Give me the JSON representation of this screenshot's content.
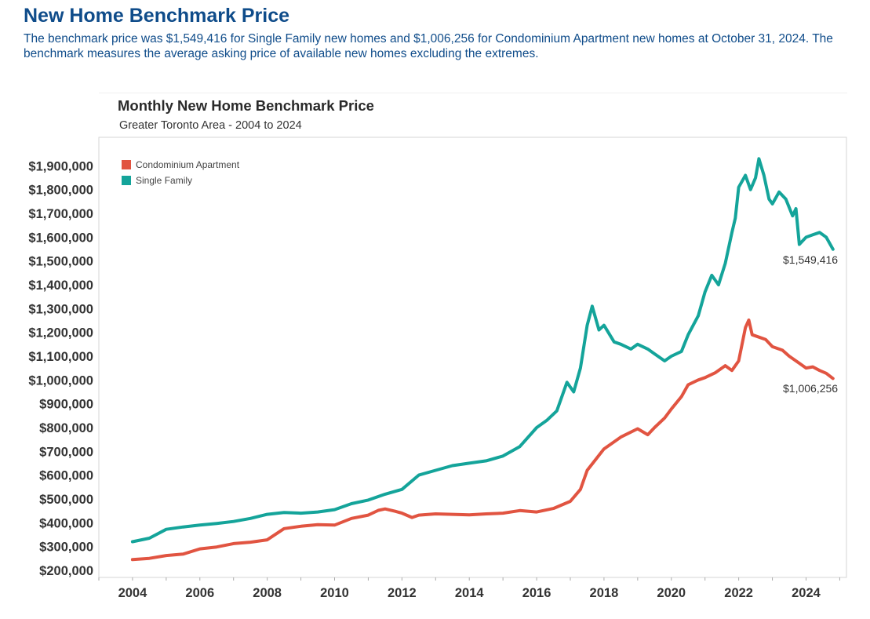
{
  "page": {
    "title": "New Home Benchmark Price",
    "description": "The benchmark price was $1,549,416 for Single Family new homes and $1,006,256 for Condominium Apartment new homes at October 31, 2024. The benchmark measures the average asking price of available new homes excluding the extremes."
  },
  "chart_data": {
    "type": "line",
    "title": "Monthly New Home Benchmark Price",
    "subtitle": "Greater Toronto Area - 2004 to 2024",
    "xlabel": "",
    "ylabel": "",
    "xlim": [
      2003,
      2025.2
    ],
    "ylim": [
      170000,
      2020000
    ],
    "x_ticks": [
      2004,
      2006,
      2008,
      2010,
      2012,
      2014,
      2016,
      2018,
      2020,
      2022,
      2024
    ],
    "x_tick_labels": [
      "2004",
      "2006",
      "2008",
      "2010",
      "2012",
      "2014",
      "2016",
      "2018",
      "2020",
      "2022",
      "2024"
    ],
    "y_ticks": [
      200000,
      300000,
      400000,
      500000,
      600000,
      700000,
      800000,
      900000,
      1000000,
      1100000,
      1200000,
      1300000,
      1400000,
      1500000,
      1600000,
      1700000,
      1800000,
      1900000
    ],
    "y_tick_labels": [
      "$200,000",
      "$300,000",
      "$400,000",
      "$500,000",
      "$600,000",
      "$700,000",
      "$800,000",
      "$900,000",
      "$1,000,000",
      "$1,100,000",
      "$1,200,000",
      "$1,300,000",
      "$1,400,000",
      "$1,500,000",
      "$1,600,000",
      "$1,700,000",
      "$1,800,000",
      "$1,900,000"
    ],
    "legend_position": "top-left",
    "series": [
      {
        "name": "Condominium Apartment",
        "color": "#e15441",
        "end_label": "$1,006,256",
        "points": [
          [
            2004.0,
            245000
          ],
          [
            2004.5,
            250000
          ],
          [
            2005.0,
            262000
          ],
          [
            2005.5,
            268000
          ],
          [
            2006.0,
            290000
          ],
          [
            2006.5,
            298000
          ],
          [
            2007.0,
            312000
          ],
          [
            2007.5,
            318000
          ],
          [
            2008.0,
            328000
          ],
          [
            2008.5,
            375000
          ],
          [
            2009.0,
            385000
          ],
          [
            2009.5,
            392000
          ],
          [
            2010.0,
            390000
          ],
          [
            2010.5,
            418000
          ],
          [
            2011.0,
            432000
          ],
          [
            2011.3,
            452000
          ],
          [
            2011.5,
            458000
          ],
          [
            2011.8,
            448000
          ],
          [
            2012.0,
            440000
          ],
          [
            2012.3,
            422000
          ],
          [
            2012.5,
            432000
          ],
          [
            2013.0,
            437000
          ],
          [
            2014.0,
            433000
          ],
          [
            2014.5,
            437000
          ],
          [
            2015.0,
            440000
          ],
          [
            2015.5,
            451000
          ],
          [
            2016.0,
            445000
          ],
          [
            2016.5,
            460000
          ],
          [
            2017.0,
            490000
          ],
          [
            2017.3,
            540000
          ],
          [
            2017.5,
            620000
          ],
          [
            2018.0,
            710000
          ],
          [
            2018.5,
            760000
          ],
          [
            2019.0,
            795000
          ],
          [
            2019.3,
            770000
          ],
          [
            2019.5,
            800000
          ],
          [
            2019.8,
            840000
          ],
          [
            2020.0,
            878000
          ],
          [
            2020.3,
            930000
          ],
          [
            2020.5,
            980000
          ],
          [
            2020.8,
            1000000
          ],
          [
            2021.0,
            1010000
          ],
          [
            2021.3,
            1030000
          ],
          [
            2021.6,
            1060000
          ],
          [
            2021.8,
            1040000
          ],
          [
            2022.0,
            1080000
          ],
          [
            2022.1,
            1150000
          ],
          [
            2022.2,
            1220000
          ],
          [
            2022.3,
            1252000
          ],
          [
            2022.4,
            1190000
          ],
          [
            2022.6,
            1180000
          ],
          [
            2022.8,
            1170000
          ],
          [
            2023.0,
            1140000
          ],
          [
            2023.3,
            1125000
          ],
          [
            2023.5,
            1100000
          ],
          [
            2023.7,
            1080000
          ],
          [
            2024.0,
            1050000
          ],
          [
            2024.2,
            1055000
          ],
          [
            2024.4,
            1040000
          ],
          [
            2024.6,
            1028000
          ],
          [
            2024.8,
            1006256
          ]
        ]
      },
      {
        "name": "Single Family",
        "color": "#14a49a",
        "end_label": "$1,549,416",
        "points": [
          [
            2004.0,
            320000
          ],
          [
            2004.5,
            335000
          ],
          [
            2005.0,
            372000
          ],
          [
            2005.5,
            382000
          ],
          [
            2006.0,
            390000
          ],
          [
            2006.5,
            397000
          ],
          [
            2007.0,
            405000
          ],
          [
            2007.5,
            418000
          ],
          [
            2008.0,
            435000
          ],
          [
            2008.5,
            443000
          ],
          [
            2009.0,
            440000
          ],
          [
            2009.5,
            445000
          ],
          [
            2010.0,
            455000
          ],
          [
            2010.5,
            480000
          ],
          [
            2011.0,
            495000
          ],
          [
            2011.5,
            520000
          ],
          [
            2012.0,
            540000
          ],
          [
            2012.5,
            600000
          ],
          [
            2013.0,
            620000
          ],
          [
            2013.5,
            640000
          ],
          [
            2014.0,
            650000
          ],
          [
            2014.5,
            660000
          ],
          [
            2015.0,
            680000
          ],
          [
            2015.5,
            720000
          ],
          [
            2016.0,
            800000
          ],
          [
            2016.3,
            830000
          ],
          [
            2016.6,
            870000
          ],
          [
            2016.9,
            990000
          ],
          [
            2017.1,
            950000
          ],
          [
            2017.3,
            1050000
          ],
          [
            2017.5,
            1230000
          ],
          [
            2017.65,
            1310000
          ],
          [
            2017.85,
            1210000
          ],
          [
            2018.0,
            1230000
          ],
          [
            2018.3,
            1160000
          ],
          [
            2018.5,
            1150000
          ],
          [
            2018.8,
            1130000
          ],
          [
            2019.0,
            1150000
          ],
          [
            2019.3,
            1130000
          ],
          [
            2019.5,
            1110000
          ],
          [
            2019.8,
            1080000
          ],
          [
            2020.0,
            1100000
          ],
          [
            2020.3,
            1120000
          ],
          [
            2020.5,
            1190000
          ],
          [
            2020.8,
            1270000
          ],
          [
            2021.0,
            1370000
          ],
          [
            2021.2,
            1440000
          ],
          [
            2021.4,
            1400000
          ],
          [
            2021.6,
            1490000
          ],
          [
            2021.8,
            1620000
          ],
          [
            2021.9,
            1680000
          ],
          [
            2022.0,
            1810000
          ],
          [
            2022.2,
            1860000
          ],
          [
            2022.35,
            1800000
          ],
          [
            2022.5,
            1850000
          ],
          [
            2022.6,
            1930000
          ],
          [
            2022.75,
            1860000
          ],
          [
            2022.9,
            1760000
          ],
          [
            2023.0,
            1740000
          ],
          [
            2023.2,
            1790000
          ],
          [
            2023.4,
            1760000
          ],
          [
            2023.6,
            1690000
          ],
          [
            2023.7,
            1720000
          ],
          [
            2023.8,
            1570000
          ],
          [
            2024.0,
            1600000
          ],
          [
            2024.2,
            1610000
          ],
          [
            2024.4,
            1620000
          ],
          [
            2024.6,
            1600000
          ],
          [
            2024.8,
            1549416
          ]
        ]
      }
    ]
  }
}
